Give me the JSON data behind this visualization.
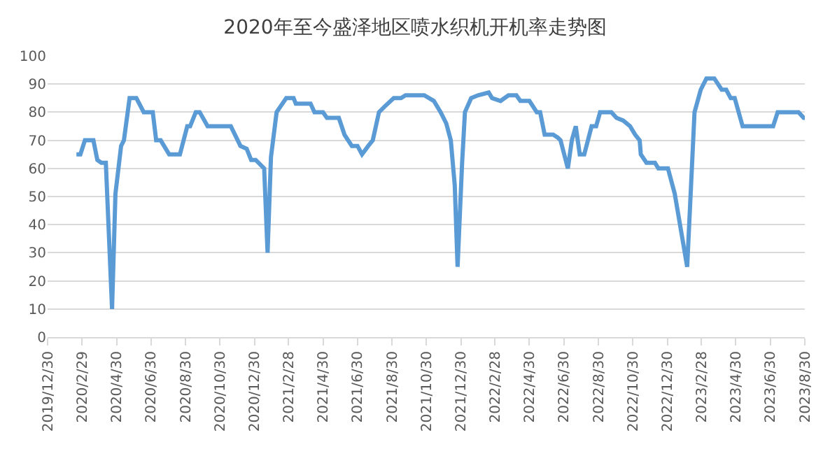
{
  "chart_data": {
    "type": "line",
    "title": "2020年至今盛泽地区喷水织机开机率走势图",
    "x": [
      "2020-02-19",
      "2020-02-26",
      "2020-03-05",
      "2020-03-20",
      "2020-03-27",
      "2020-04-03",
      "2020-04-11",
      "2020-04-22",
      "2020-04-28",
      "2020-05-08",
      "2020-05-13",
      "2020-05-23",
      "2020-06-04",
      "2020-06-17",
      "2020-07-03",
      "2020-07-09",
      "2020-07-17",
      "2020-08-01",
      "2020-08-20",
      "2020-09-02",
      "2020-09-07",
      "2020-09-17",
      "2020-09-24",
      "2020-10-08",
      "2020-11-18",
      "2020-12-05",
      "2020-12-16",
      "2020-12-24",
      "2021-01-01",
      "2021-01-16",
      "2021-01-22",
      "2021-01-28",
      "2021-02-07",
      "2021-02-24",
      "2021-03-09",
      "2021-03-13",
      "2021-04-08",
      "2021-04-15",
      "2021-04-30",
      "2021-05-07",
      "2021-05-28",
      "2021-06-07",
      "2021-06-20",
      "2021-06-30",
      "2021-07-08",
      "2021-07-19",
      "2021-07-27",
      "2021-08-07",
      "2021-08-17",
      "2021-09-02",
      "2021-09-15",
      "2021-09-23",
      "2021-10-26",
      "2021-11-12",
      "2021-11-24",
      "2021-12-04",
      "2021-12-12",
      "2021-12-19",
      "2021-12-24",
      "2022-01-01",
      "2022-01-06",
      "2022-01-17",
      "2022-01-29",
      "2022-02-17",
      "2022-02-23",
      "2022-03-10",
      "2022-03-24",
      "2022-04-07",
      "2022-04-14",
      "2022-04-30",
      "2022-05-13",
      "2022-05-19",
      "2022-05-27",
      "2022-06-11",
      "2022-06-19",
      "2022-06-24",
      "2022-07-07",
      "2022-07-14",
      "2022-07-21",
      "2022-07-28",
      "2022-08-05",
      "2022-08-18",
      "2022-08-26",
      "2022-09-02",
      "2022-09-22",
      "2022-10-01",
      "2022-10-13",
      "2022-10-25",
      "2022-11-03",
      "2022-11-11",
      "2022-11-13",
      "2022-11-23",
      "2022-12-08",
      "2022-12-14",
      "2022-12-31",
      "2023-01-12",
      "2023-02-03",
      "2023-02-16",
      "2023-02-27",
      "2023-03-09",
      "2023-03-23",
      "2023-04-05",
      "2023-04-13",
      "2023-04-21",
      "2023-04-28",
      "2023-05-12",
      "2023-07-05",
      "2023-07-13",
      "2023-08-19",
      "2023-08-28",
      "2023-08-30"
    ],
    "series": [
      {
        "color": "#5b9bd5",
        "values": [
          65,
          65,
          70,
          70,
          63,
          62,
          62,
          10,
          51,
          68,
          70,
          85,
          85,
          80,
          80,
          70,
          70,
          65,
          65,
          75,
          75,
          80,
          80,
          75,
          75,
          68,
          67,
          63,
          63,
          60,
          30,
          64,
          80,
          85,
          85,
          83,
          83,
          80,
          80,
          78,
          78,
          72,
          68,
          68,
          65,
          68,
          70,
          80,
          82,
          85,
          85,
          86,
          86,
          84,
          80,
          76,
          70,
          54,
          25,
          62,
          80,
          85,
          86,
          87,
          85,
          84,
          86,
          86,
          84,
          84,
          80,
          80,
          72,
          72,
          71,
          70,
          60,
          70,
          75,
          65,
          65,
          75,
          75,
          80,
          80,
          78,
          77,
          75,
          72,
          70,
          65,
          62,
          62,
          60,
          60,
          51,
          25,
          80,
          88,
          92,
          92,
          88,
          88,
          85,
          85,
          75,
          75,
          80,
          80,
          78,
          78
        ]
      }
    ],
    "xlim": [
      "2019-12-30",
      "2023-08-30"
    ],
    "xticks": [
      {
        "value": "2019-12-30",
        "label": "2019/12/30"
      },
      {
        "value": "2020-02-29",
        "label": "2020/2/29"
      },
      {
        "value": "2020-04-30",
        "label": "2020/4/30"
      },
      {
        "value": "2020-06-30",
        "label": "2020/6/30"
      },
      {
        "value": "2020-08-30",
        "label": "2020/8/30"
      },
      {
        "value": "2020-10-30",
        "label": "2020/10/30"
      },
      {
        "value": "2020-12-30",
        "label": "2020/12/30"
      },
      {
        "value": "2021-02-28",
        "label": "2021/2/28"
      },
      {
        "value": "2021-04-30",
        "label": "2021/4/30"
      },
      {
        "value": "2021-06-30",
        "label": "2021/6/30"
      },
      {
        "value": "2021-08-30",
        "label": "2021/8/30"
      },
      {
        "value": "2021-10-30",
        "label": "2021/10/30"
      },
      {
        "value": "2021-12-30",
        "label": "2021/12/30"
      },
      {
        "value": "2022-02-28",
        "label": "2022/2/28"
      },
      {
        "value": "2022-04-30",
        "label": "2022/4/30"
      },
      {
        "value": "2022-06-30",
        "label": "2022/6/30"
      },
      {
        "value": "2022-08-30",
        "label": "2022/8/30"
      },
      {
        "value": "2022-10-30",
        "label": "2022/10/30"
      },
      {
        "value": "2022-12-30",
        "label": "2022/12/30"
      },
      {
        "value": "2023-02-28",
        "label": "2023/2/28"
      },
      {
        "value": "2023-04-30",
        "label": "2023/4/30"
      },
      {
        "value": "2023-06-30",
        "label": "2023/6/30"
      },
      {
        "value": "2023-08-30",
        "label": "2023/8/30"
      }
    ],
    "ylim": [
      0,
      100
    ],
    "yticks": [
      0,
      10,
      20,
      30,
      40,
      50,
      60,
      70,
      80,
      90,
      100
    ],
    "grid": "y",
    "marker": "none",
    "line_style": "solid"
  }
}
